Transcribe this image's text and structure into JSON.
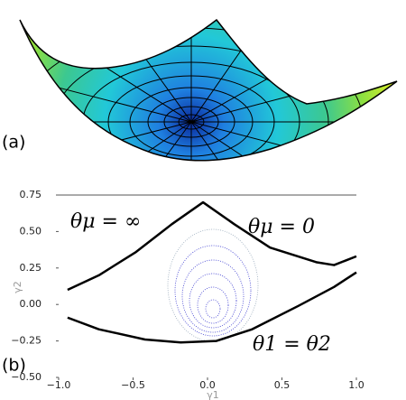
{
  "panel_labels": [
    "(a)",
    "(b)"
  ],
  "chart_data": {
    "type": "line",
    "annotations": [
      "θμ = ∞",
      "θμ = 0",
      "θ1 = θ2"
    ],
    "xlabel": "γ1",
    "ylabel": "γ2",
    "series": [
      {
        "color": "#000000",
        "x": [
          -0.94,
          -0.73,
          -0.48,
          -0.24,
          -0.03,
          0.18,
          0.42,
          0.73,
          0.85,
          1.0
        ],
        "values": [
          0.1,
          0.2,
          0.36,
          0.55,
          0.7,
          0.55,
          0.39,
          0.29,
          0.27,
          0.33
        ]
      },
      {
        "color": "#000000",
        "x": [
          -0.94,
          -0.73,
          -0.42,
          -0.18,
          0.06,
          0.3,
          0.61,
          0.85,
          1.0
        ],
        "values": [
          -0.09,
          -0.17,
          -0.24,
          -0.26,
          -0.25,
          -0.17,
          -0.01,
          0.12,
          0.22
        ]
      }
    ],
    "xlim": [
      -1.0,
      1.0
    ],
    "xticks": [
      {
        "value": -1.0,
        "label": "−1.0"
      },
      {
        "value": -0.5,
        "label": "−0.5"
      },
      {
        "value": 0.0,
        "label": "0.0"
      },
      0.5,
      {
        "value": 1.0,
        "label": "1.0"
      }
    ],
    "ylim": [
      -0.5,
      0.75
    ],
    "yticks": [
      0.75,
      {
        "value": 0.5,
        "label": "0.50"
      },
      0.25,
      {
        "value": 0.0,
        "label": "0.00"
      },
      {
        "value": -0.25,
        "label": "−0.25"
      },
      {
        "value": -0.5,
        "label": "−0.50"
      }
    ]
  }
}
